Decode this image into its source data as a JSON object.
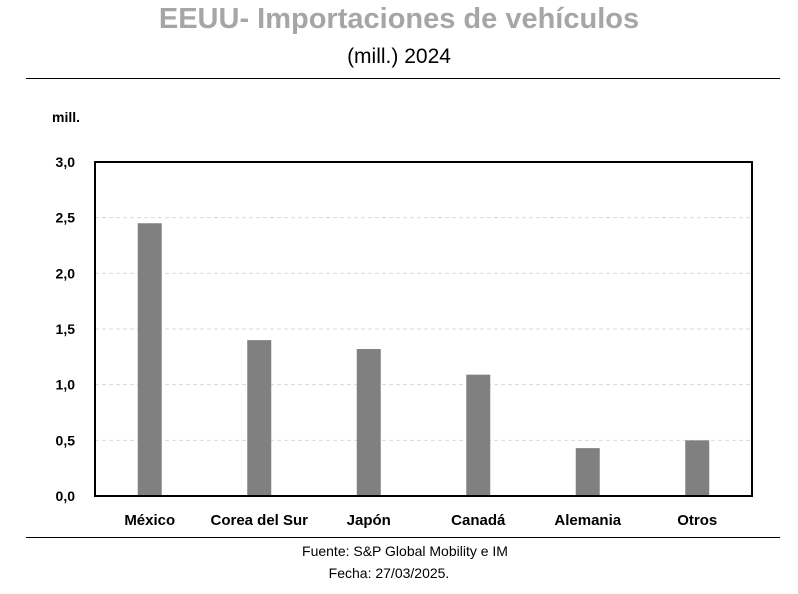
{
  "header": {
    "title": "EEUU- Importaciones de vehículos",
    "subtitle": "(mill.) 2024"
  },
  "chart_data": {
    "type": "bar",
    "title": "EEUU- Importaciones de vehículos",
    "subtitle": "(mill.) 2024",
    "ylabel": "mill.",
    "xlabel": "",
    "categories": [
      "México",
      "Corea del Sur",
      "Japón",
      "Canadá",
      "Alemania",
      "Otros"
    ],
    "values": [
      2.45,
      1.4,
      1.32,
      1.09,
      0.43,
      0.5
    ],
    "ylim": [
      0,
      3
    ],
    "yticks": [
      0,
      0.5,
      1,
      1.5,
      2,
      2.5,
      3
    ],
    "ytick_labels": [
      "0,0",
      "0,5",
      "1,0",
      "1,5",
      "2,0",
      "2,5",
      "3,0"
    ],
    "grid": true,
    "bar_color": "#808080",
    "grid_color": "#d9d9d9"
  },
  "footer": {
    "source": "Fuente: S&P Global Mobility e IM",
    "date": "Fecha: 27/03/2025."
  }
}
